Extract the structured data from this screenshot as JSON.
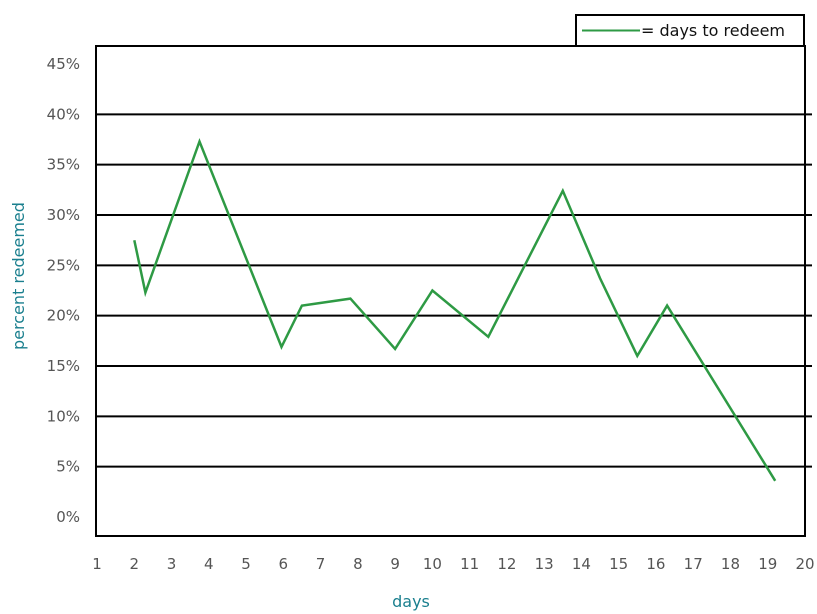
{
  "chart_data": {
    "type": "line",
    "xlabel": "days",
    "ylabel": "percent redeemed",
    "x_ticks": [
      "1",
      "2",
      "3",
      "4",
      "5",
      "6",
      "7",
      "8",
      "9",
      "10",
      "11",
      "12",
      "13",
      "14",
      "15",
      "16",
      "17",
      "18",
      "19",
      "20"
    ],
    "y_ticks": [
      "0%",
      "5%",
      "10%",
      "15%",
      "20%",
      "25%",
      "30%",
      "35%",
      "40%",
      "45%"
    ],
    "ylim": [
      0,
      45
    ],
    "grid": true,
    "legend_position": "top-right",
    "series": [
      {
        "name": "= days to redeem",
        "color": "#2e9a44",
        "points": [
          {
            "x": 2.0,
            "y": 27.5
          },
          {
            "x": 2.3,
            "y": 22.3
          },
          {
            "x": 3.75,
            "y": 37.3
          },
          {
            "x": 5.95,
            "y": 16.9
          },
          {
            "x": 6.5,
            "y": 21.0
          },
          {
            "x": 7.8,
            "y": 21.7
          },
          {
            "x": 9.0,
            "y": 16.7
          },
          {
            "x": 10.0,
            "y": 22.5
          },
          {
            "x": 11.5,
            "y": 17.9
          },
          {
            "x": 13.5,
            "y": 32.4
          },
          {
            "x": 14.5,
            "y": 23.7
          },
          {
            "x": 15.5,
            "y": 16.0
          },
          {
            "x": 16.3,
            "y": 21.0
          },
          {
            "x": 19.2,
            "y": 3.6
          }
        ]
      }
    ]
  }
}
